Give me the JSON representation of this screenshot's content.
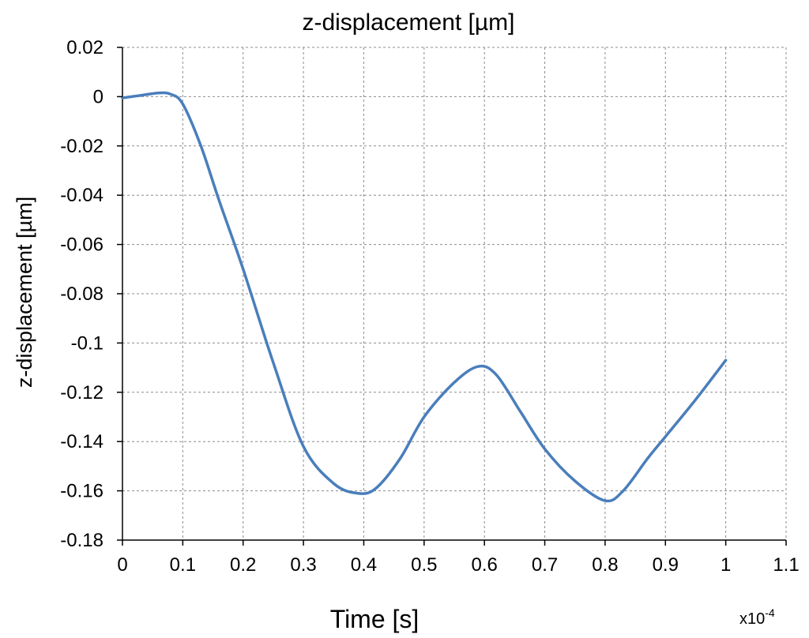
{
  "chart_data": {
    "type": "line",
    "title": "z-displacement [µm]",
    "xlabel": "Time [s]",
    "ylabel": "z-displacement [µm]",
    "x_multiplier": "x10",
    "x_multiplier_exponent": "-4",
    "xlim": [
      0,
      1.1
    ],
    "ylim": [
      -0.18,
      0.02
    ],
    "x_ticks": [
      "0",
      "0.1",
      "0.2",
      "0.3",
      "0.4",
      "0.5",
      "0.6",
      "0.7",
      "0.8",
      "0.9",
      "1",
      "1.1"
    ],
    "y_ticks": [
      "0.02",
      "0",
      "-0.02",
      "-0.04",
      "-0.06",
      "-0.08",
      "-0.1",
      "-0.12",
      "-0.14",
      "-0.16",
      "-0.18"
    ],
    "grid": true,
    "legend": "none",
    "series": [
      {
        "color": "#4a7ebb",
        "x": [
          0,
          0.03,
          0.06,
          0.08,
          0.1,
          0.13,
          0.16,
          0.2,
          0.25,
          0.3,
          0.35,
          0.39,
          0.42,
          0.46,
          0.5,
          0.55,
          0.59,
          0.62,
          0.66,
          0.7,
          0.75,
          0.8,
          0.83,
          0.87,
          0.9,
          0.95,
          1.0
        ],
        "y": [
          -0.0005,
          0.0005,
          0.0015,
          0.001,
          -0.003,
          -0.02,
          -0.042,
          -0.07,
          -0.108,
          -0.142,
          -0.157,
          -0.161,
          -0.159,
          -0.147,
          -0.13,
          -0.116,
          -0.1095,
          -0.113,
          -0.128,
          -0.143,
          -0.156,
          -0.164,
          -0.16,
          -0.147,
          -0.138,
          -0.123,
          -0.107
        ]
      }
    ]
  }
}
